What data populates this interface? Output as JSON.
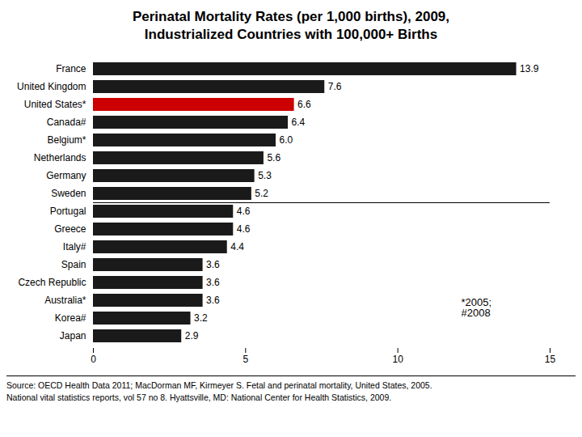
{
  "chart_data": {
    "type": "bar",
    "orientation": "horizontal",
    "title": "Perinatal Mortality Rates (per 1,000 births), 2009,\nIndustrialized Countries with 100,000+ Births",
    "categories": [
      "France",
      "United Kingdom",
      "United States*",
      "Canada#",
      "Belgium*",
      "Netherlands",
      "Germany",
      "Sweden",
      "Portugal",
      "Greece",
      "Italy#",
      "Spain",
      "Czech Republic",
      "Australia*",
      "Korea#",
      "Japan"
    ],
    "values": [
      13.9,
      7.6,
      6.6,
      6.4,
      6.0,
      5.6,
      5.3,
      5.2,
      4.6,
      4.6,
      4.4,
      3.6,
      3.6,
      3.6,
      3.2,
      2.9
    ],
    "value_labels": [
      "13.9",
      "7.6",
      "6.6",
      "6.4",
      "6.0",
      "5.6",
      "5.3",
      "5.2",
      "4.6",
      "4.6",
      "4.4",
      "3.6",
      "3.6",
      "3.6",
      "3.2",
      "2.9"
    ],
    "colors": [
      "#1a1a1a",
      "#1a1a1a",
      "#cc0000",
      "#1a1a1a",
      "#1a1a1a",
      "#1a1a1a",
      "#1a1a1a",
      "#1a1a1a",
      "#1a1a1a",
      "#1a1a1a",
      "#1a1a1a",
      "#1a1a1a",
      "#1a1a1a",
      "#1a1a1a",
      "#1a1a1a",
      "#1a1a1a"
    ],
    "xlim": [
      0,
      15
    ],
    "xticks": [
      0,
      5,
      10,
      15
    ],
    "grid": false,
    "data_labels": true,
    "annotations": [
      "*2005;\n#2008"
    ],
    "caption": [
      "Source: OECD Health Data 2011; MacDorman MF, Kirmeyer S. Fetal and perinatal mortality, United States, 2005.",
      "National vital statistics reports, vol 57 no 8. Hyattsville, MD: National Center for Health Statistics, 2009."
    ]
  }
}
